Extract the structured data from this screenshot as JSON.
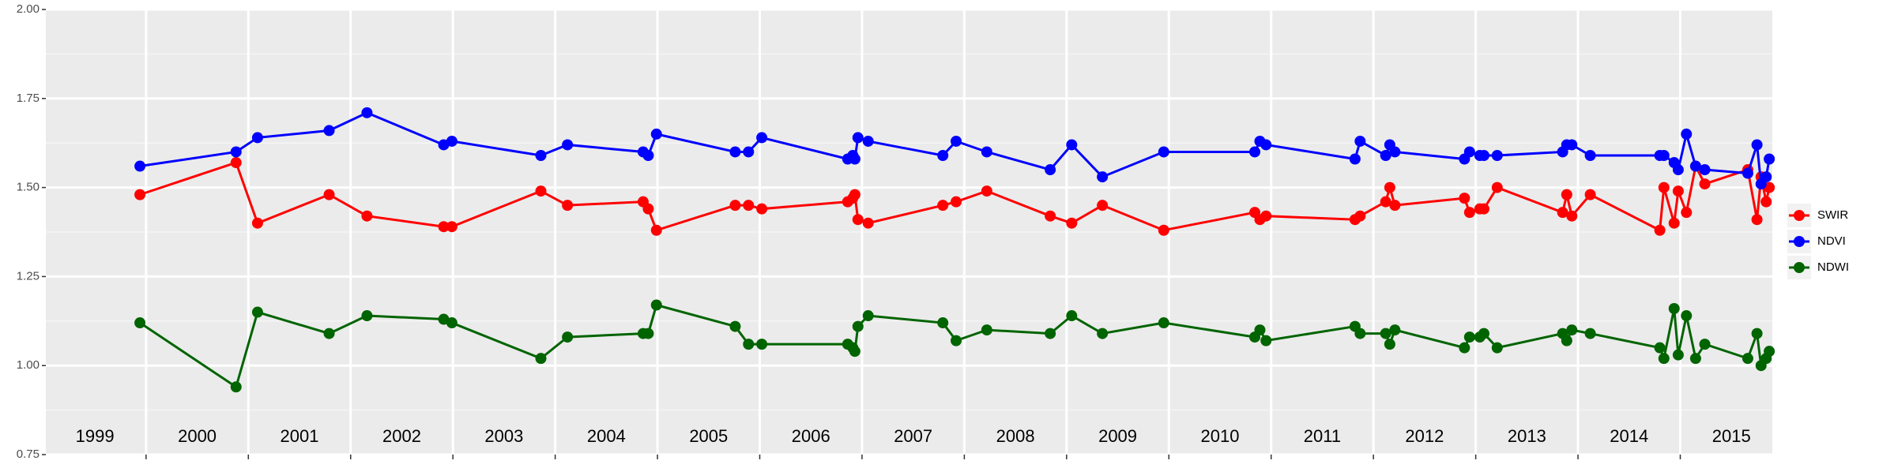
{
  "chart_data": {
    "type": "line",
    "x": [
      1999.94,
      2000.88,
      2001.09,
      2001.79,
      2002.16,
      2002.91,
      2002.99,
      2003.86,
      2004.12,
      2004.86,
      2004.91,
      2004.99,
      2005.76,
      2005.89,
      2006.02,
      2006.86,
      2006.91,
      2006.93,
      2006.96,
      2007.06,
      2007.79,
      2007.92,
      2008.22,
      2008.84,
      2009.05,
      2009.35,
      2009.95,
      2010.84,
      2010.89,
      2010.95,
      2011.82,
      2011.87,
      2012.12,
      2012.16,
      2012.21,
      2012.89,
      2012.94,
      2013.04,
      2013.08,
      2013.21,
      2013.85,
      2013.89,
      2013.94,
      2014.12,
      2014.8,
      2014.84,
      2014.94,
      2014.98,
      2015.06,
      2015.15,
      2015.24,
      2015.66,
      2015.75,
      2015.79,
      2015.84,
      2015.87
    ],
    "series": [
      {
        "name": "SWIR",
        "color": "#ff0000",
        "values": [
          1.48,
          1.57,
          1.4,
          1.48,
          1.42,
          1.39,
          1.39,
          1.49,
          1.45,
          1.46,
          1.44,
          1.38,
          1.45,
          1.45,
          1.44,
          1.46,
          1.47,
          1.48,
          1.41,
          1.4,
          1.45,
          1.46,
          1.49,
          1.42,
          1.4,
          1.45,
          1.38,
          1.43,
          1.41,
          1.42,
          1.41,
          1.42,
          1.46,
          1.5,
          1.45,
          1.47,
          1.43,
          1.44,
          1.44,
          1.5,
          1.43,
          1.48,
          1.42,
          1.48,
          1.38,
          1.5,
          1.4,
          1.49,
          1.43,
          1.56,
          1.51,
          1.55,
          1.41,
          1.53,
          1.46,
          1.5
        ]
      },
      {
        "name": "NDVI",
        "color": "#0000ff",
        "values": [
          1.56,
          1.6,
          1.64,
          1.66,
          1.71,
          1.62,
          1.63,
          1.59,
          1.62,
          1.6,
          1.59,
          1.65,
          1.6,
          1.6,
          1.64,
          1.58,
          1.59,
          1.58,
          1.64,
          1.63,
          1.59,
          1.63,
          1.6,
          1.55,
          1.62,
          1.53,
          1.6,
          1.6,
          1.63,
          1.62,
          1.58,
          1.63,
          1.59,
          1.62,
          1.6,
          1.58,
          1.6,
          1.59,
          1.59,
          1.59,
          1.6,
          1.62,
          1.62,
          1.59,
          1.59,
          1.59,
          1.57,
          1.55,
          1.65,
          1.56,
          1.55,
          1.54,
          1.62,
          1.51,
          1.53,
          1.58
        ]
      },
      {
        "name": "NDWI",
        "color": "#006400",
        "values": [
          1.12,
          0.94,
          1.15,
          1.09,
          1.14,
          1.13,
          1.12,
          1.02,
          1.08,
          1.09,
          1.09,
          1.17,
          1.11,
          1.06,
          1.06,
          1.06,
          1.05,
          1.04,
          1.11,
          1.14,
          1.12,
          1.07,
          1.1,
          1.09,
          1.14,
          1.09,
          1.12,
          1.08,
          1.1,
          1.07,
          1.11,
          1.09,
          1.09,
          1.06,
          1.1,
          1.05,
          1.08,
          1.08,
          1.09,
          1.05,
          1.09,
          1.07,
          1.1,
          1.09,
          1.05,
          1.02,
          1.16,
          1.03,
          1.14,
          1.02,
          1.06,
          1.02,
          1.09,
          1.0,
          1.02,
          1.04
        ]
      }
    ],
    "xlim": [
      1999.02,
      2015.9
    ],
    "xticks": [
      2000,
      2001,
      2002,
      2003,
      2004,
      2005,
      2006,
      2007,
      2008,
      2009,
      2010,
      2011,
      2012,
      2013,
      2014,
      2015
    ],
    "ylim": [
      0.75,
      2.0
    ],
    "yticks": [
      {
        "value": 0.75,
        "label": "0.75"
      },
      {
        "value": 1.0,
        "label": "1.00"
      },
      {
        "value": 1.25,
        "label": "1.25"
      },
      {
        "value": 1.5,
        "label": "1.50"
      },
      {
        "value": 1.75,
        "label": "1.75"
      },
      {
        "value": 2.0,
        "label": "2.00"
      }
    ],
    "annotations": [
      {
        "x": 1999.5,
        "label": "1999"
      },
      {
        "x": 2000.5,
        "label": "2000"
      },
      {
        "x": 2001.5,
        "label": "2001"
      },
      {
        "x": 2002.5,
        "label": "2002"
      },
      {
        "x": 2003.5,
        "label": "2003"
      },
      {
        "x": 2004.5,
        "label": "2004"
      },
      {
        "x": 2005.5,
        "label": "2005"
      },
      {
        "x": 2006.5,
        "label": "2006"
      },
      {
        "x": 2007.5,
        "label": "2007"
      },
      {
        "x": 2008.5,
        "label": "2008"
      },
      {
        "x": 2009.5,
        "label": "2009"
      },
      {
        "x": 2010.5,
        "label": "2010"
      },
      {
        "x": 2011.5,
        "label": "2011"
      },
      {
        "x": 2012.5,
        "label": "2012"
      },
      {
        "x": 2013.5,
        "label": "2013"
      },
      {
        "x": 2014.5,
        "label": "2014"
      },
      {
        "x": 2015.5,
        "label": "2015"
      }
    ],
    "grid": true,
    "legend": "right"
  }
}
